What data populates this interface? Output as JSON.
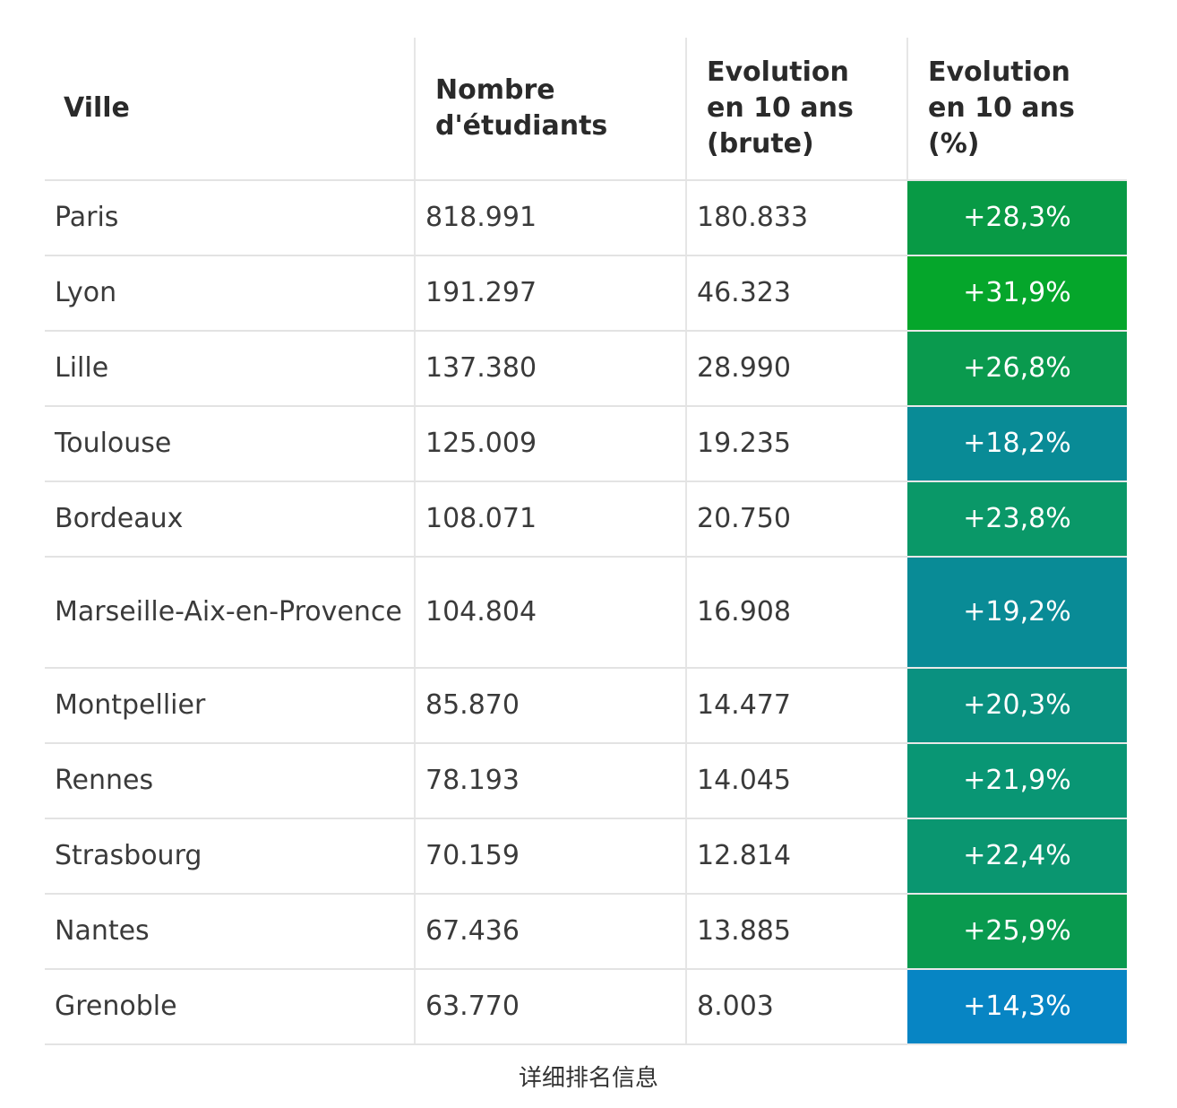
{
  "headers": {
    "city": "Ville",
    "students": "Nombre d'étudiants",
    "evo_raw": "Evolution en 10 ans (brute)",
    "evo_pct": "Evolution en 10 ans (%)"
  },
  "rows": [
    {
      "city": "Paris",
      "students": "818.991",
      "evo_raw": "180.833",
      "evo_pct": "+28,3%",
      "color": "#089a45"
    },
    {
      "city": "Lyon",
      "students": "191.297",
      "evo_raw": "46.323",
      "evo_pct": "+31,9%",
      "color": "#05a62b"
    },
    {
      "city": "Lille",
      "students": "137.380",
      "evo_raw": "28.990",
      "evo_pct": "+26,8%",
      "color": "#0a9a4e"
    },
    {
      "city": "Toulouse",
      "students": "125.009",
      "evo_raw": "19.235",
      "evo_pct": "+18,2%",
      "color": "#098b96"
    },
    {
      "city": "Bordeaux",
      "students": "108.071",
      "evo_raw": "20.750",
      "evo_pct": "+23,8%",
      "color": "#0a9868"
    },
    {
      "city": "Marseille-Aix-en-Provence",
      "students": "104.804",
      "evo_raw": "16.908",
      "evo_pct": "+19,2%",
      "color": "#098b96"
    },
    {
      "city": "Montpellier",
      "students": "85.870",
      "evo_raw": "14.477",
      "evo_pct": "+20,3%",
      "color": "#0a9180"
    },
    {
      "city": "Rennes",
      "students": "78.193",
      "evo_raw": "14.045",
      "evo_pct": "+21,9%",
      "color": "#099674"
    },
    {
      "city": "Strasbourg",
      "students": "70.159",
      "evo_raw": "12.814",
      "evo_pct": "+22,4%",
      "color": "#0a9670"
    },
    {
      "city": "Nantes",
      "students": "67.436",
      "evo_raw": "13.885",
      "evo_pct": "+25,9%",
      "color": "#099a4f"
    },
    {
      "city": "Grenoble",
      "students": "63.770",
      "evo_raw": "8.003",
      "evo_pct": "+14,3%",
      "color": "#0785c4"
    }
  ],
  "caption": "详细排名信息"
}
